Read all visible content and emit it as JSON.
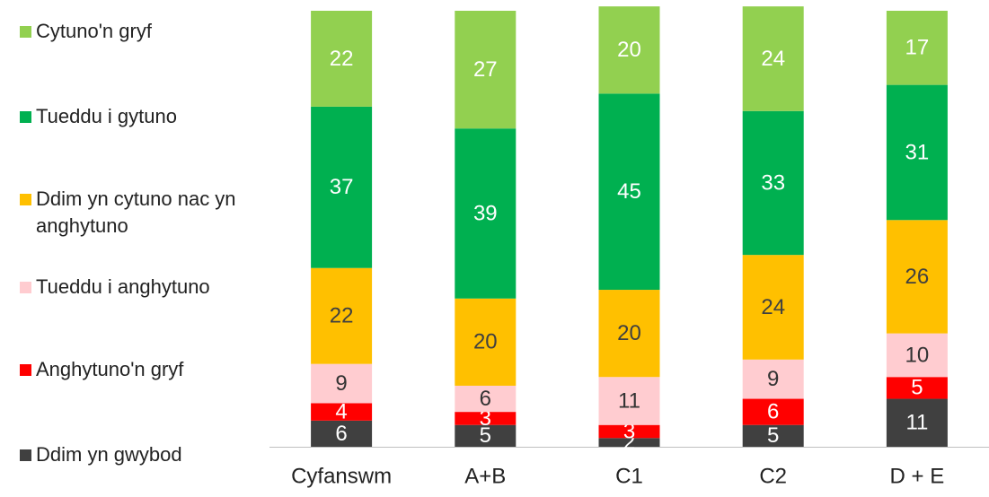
{
  "chart_data": {
    "type": "stacked-bar",
    "categories": [
      "Cyfanswm",
      "A+B",
      "C1",
      "C2",
      "D + E"
    ],
    "series": [
      {
        "name": "Ddim yn gwybod",
        "color": "#404040",
        "label_color": "#ffffff",
        "values": [
          6,
          5,
          2,
          5,
          11
        ]
      },
      {
        "name": "Anghytuno'n gryf",
        "color": "#ff0000",
        "label_color": "#ffffff",
        "values": [
          4,
          3,
          3,
          6,
          5
        ]
      },
      {
        "name": "Tueddu i anghytuno",
        "color": "#ffccd0",
        "label_color": "#333333",
        "values": [
          9,
          6,
          11,
          9,
          10
        ]
      },
      {
        "name": "Ddim yn cytuno nac yn anghytuno",
        "color": "#ffc000",
        "label_color": "#404040",
        "values": [
          22,
          20,
          20,
          24,
          26
        ]
      },
      {
        "name": "Tueddu i gytuno",
        "color": "#00b050",
        "label_color": "#ffffff",
        "values": [
          37,
          39,
          45,
          33,
          31
        ]
      },
      {
        "name": "Cytuno'n gryf",
        "color": "#92d050",
        "label_color": "#ffffff",
        "values": [
          22,
          27,
          20,
          24,
          17
        ]
      }
    ],
    "legend": "left"
  }
}
